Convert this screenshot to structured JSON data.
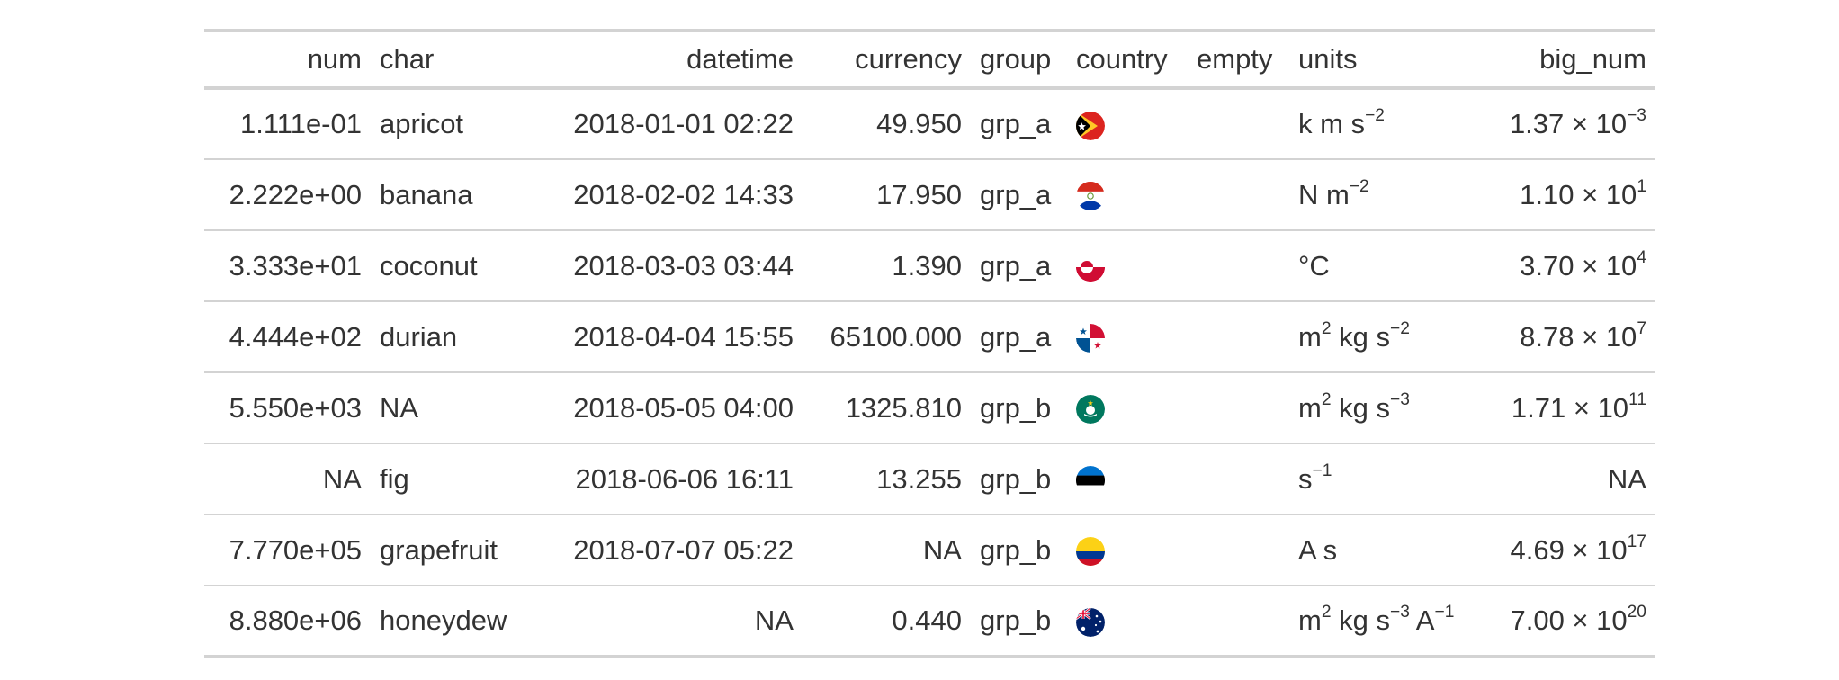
{
  "table": {
    "headers": [
      "num",
      "char",
      "datetime",
      "currency",
      "group",
      "country",
      "empty",
      "units",
      "big_num"
    ],
    "rows": [
      {
        "num": "1.111e-01",
        "char": "apricot",
        "datetime": "2018-01-01 02:22",
        "currency": "49.950",
        "group": "grp_a",
        "country_icon": "flag-east-timor-icon",
        "empty": "",
        "units": [
          {
            "t": "k m s"
          },
          {
            "t": "−2",
            "sup": true
          }
        ],
        "big_num": [
          {
            "t": "1.37 × 10"
          },
          {
            "t": "−3",
            "sup": true
          }
        ]
      },
      {
        "num": "2.222e+00",
        "char": "banana",
        "datetime": "2018-02-02 14:33",
        "currency": "17.950",
        "group": "grp_a",
        "country_icon": "flag-paraguay-icon",
        "empty": "",
        "units": [
          {
            "t": "N m"
          },
          {
            "t": "−2",
            "sup": true
          }
        ],
        "big_num": [
          {
            "t": "1.10 × 10"
          },
          {
            "t": "1",
            "sup": true
          }
        ]
      },
      {
        "num": "3.333e+01",
        "char": "coconut",
        "datetime": "2018-03-03 03:44",
        "currency": "1.390",
        "group": "grp_a",
        "country_icon": "flag-greenland-icon",
        "empty": "",
        "units": [
          {
            "t": "°C"
          }
        ],
        "big_num": [
          {
            "t": "3.70 × 10"
          },
          {
            "t": "4",
            "sup": true
          }
        ]
      },
      {
        "num": "4.444e+02",
        "char": "durian",
        "datetime": "2018-04-04 15:55",
        "currency": "65100.000",
        "group": "grp_a",
        "country_icon": "flag-panama-icon",
        "empty": "",
        "units": [
          {
            "t": "m"
          },
          {
            "t": "2",
            "sup": true
          },
          {
            "t": " kg s"
          },
          {
            "t": "−2",
            "sup": true
          }
        ],
        "big_num": [
          {
            "t": "8.78 × 10"
          },
          {
            "t": "7",
            "sup": true
          }
        ]
      },
      {
        "num": "5.550e+03",
        "char": "NA",
        "datetime": "2018-05-05 04:00",
        "currency": "1325.810",
        "group": "grp_b",
        "country_icon": "flag-macau-icon",
        "empty": "",
        "units": [
          {
            "t": "m"
          },
          {
            "t": "2",
            "sup": true
          },
          {
            "t": " kg s"
          },
          {
            "t": "−3",
            "sup": true
          }
        ],
        "big_num": [
          {
            "t": "1.71 × 10"
          },
          {
            "t": "11",
            "sup": true
          }
        ]
      },
      {
        "num": "NA",
        "char": "fig",
        "datetime": "2018-06-06 16:11",
        "currency": "13.255",
        "group": "grp_b",
        "country_icon": "flag-estonia-icon",
        "empty": "",
        "units": [
          {
            "t": "s"
          },
          {
            "t": "−1",
            "sup": true
          }
        ],
        "big_num": [
          {
            "t": "NA"
          }
        ]
      },
      {
        "num": "7.770e+05",
        "char": "grapefruit",
        "datetime": "2018-07-07 05:22",
        "currency": "NA",
        "group": "grp_b",
        "country_icon": "flag-colombia-icon",
        "empty": "",
        "units": [
          {
            "t": "A s"
          }
        ],
        "big_num": [
          {
            "t": "4.69 × 10"
          },
          {
            "t": "17",
            "sup": true
          }
        ]
      },
      {
        "num": "8.880e+06",
        "char": "honeydew",
        "datetime": "NA",
        "currency": "0.440",
        "group": "grp_b",
        "country_icon": "flag-australia-icon",
        "empty": "",
        "units": [
          {
            "t": "m"
          },
          {
            "t": "2",
            "sup": true
          },
          {
            "t": " kg s"
          },
          {
            "t": "−3",
            "sup": true
          },
          {
            "t": " A"
          },
          {
            "t": "−1",
            "sup": true
          }
        ],
        "big_num": [
          {
            "t": "7.00 × 10"
          },
          {
            "t": "20",
            "sup": true
          }
        ]
      }
    ]
  },
  "colors": {
    "text": "#333333",
    "rule": "#d3d3d3"
  }
}
